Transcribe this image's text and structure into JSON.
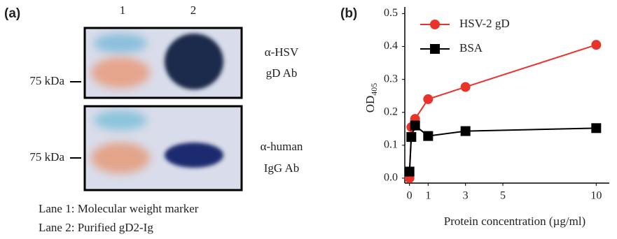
{
  "panel_a": {
    "label": "(a)",
    "lanes": [
      "1",
      "2"
    ],
    "blots": [
      {
        "marker": "75 kDa",
        "antibody": [
          "α-HSV",
          "gD Ab"
        ]
      },
      {
        "marker": "75 kDa",
        "antibody": [
          "α-human",
          "IgG Ab"
        ]
      }
    ],
    "legend": [
      "Lane 1: Molecular weight marker",
      "Lane 2: Purified gD2-Ig"
    ]
  },
  "chart_data": {
    "type": "line",
    "label": "(b)",
    "x_label": "Protein concentration (µg/ml)",
    "y_label": "OD",
    "y_label_subscript": "405",
    "x": [
      0,
      0.1,
      0.3,
      1,
      3,
      10
    ],
    "series": [
      {
        "name": "HSV-2 gD",
        "color": "#e8332b",
        "marker": "circle",
        "values": [
          0.0,
          0.155,
          0.18,
          0.24,
          0.277,
          0.405
        ]
      },
      {
        "name": "BSA",
        "color": "#000000",
        "marker": "square",
        "values": [
          0.02,
          0.125,
          0.16,
          0.128,
          0.143,
          0.152
        ]
      }
    ],
    "xlim": [
      -0.25,
      10.7
    ],
    "ylim": [
      -0.015,
      0.52
    ],
    "xticks": [
      0,
      1,
      3,
      5,
      10
    ],
    "yticks": [
      {
        "value": 0,
        "label": "0.0"
      },
      0.1,
      0.2,
      0.3,
      0.4,
      0.5
    ],
    "grid": false,
    "legend": "top-left"
  }
}
